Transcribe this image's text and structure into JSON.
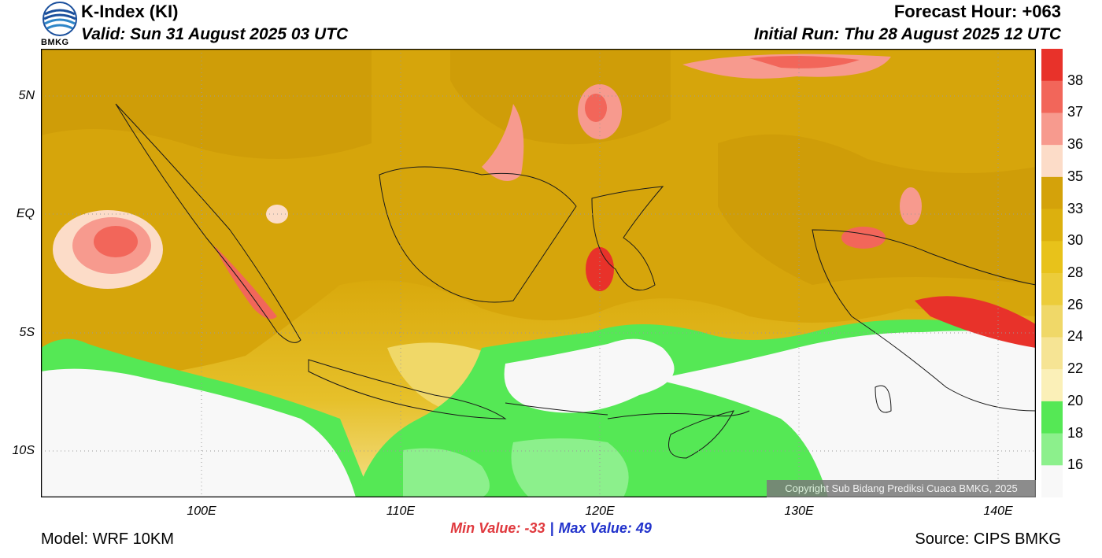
{
  "header": {
    "title": "K-Index (KI)",
    "valid": "Valid: Sun 31 August 2025 03 UTC",
    "forecast_hour": "Forecast Hour: +063",
    "initial_run": "Initial Run: Thu 28 August 2025 12 UTC",
    "logo_text": "BMKG"
  },
  "axes": {
    "lat_labels": [
      "5N",
      "EQ",
      "5S",
      "10S"
    ],
    "lon_labels": [
      "100E",
      "110E",
      "120E",
      "130E",
      "140E"
    ]
  },
  "colorbar": {
    "labels": [
      "38",
      "37",
      "36",
      "35",
      "33",
      "30",
      "28",
      "26",
      "24",
      "22",
      "20",
      "18",
      "16"
    ],
    "colors": {
      "c38": "#e8322a",
      "c37": "#f2665a",
      "c36": "#f79a8e",
      "c35": "#fcdcc8",
      "c33": "#d4a20a",
      "c30": "#dcb00e",
      "c28": "#e8c21a",
      "c26": "#eccc3a",
      "c24": "#f0d868",
      "c22": "#f6e494",
      "c20": "#fbf0b8",
      "c18": "#55e855",
      "c16": "#8cf08c",
      "c_low": "#f8f8f8"
    }
  },
  "stats": {
    "min": "Min Value: -33",
    "separator": "|",
    "max": "Max Value:  49"
  },
  "footer": {
    "model": "Model: WRF 10KM",
    "source": "Source: CIPS BMKG",
    "copyright": "Copyright Sub Bidang Prediksi Cuaca BMKG, 2025"
  }
}
